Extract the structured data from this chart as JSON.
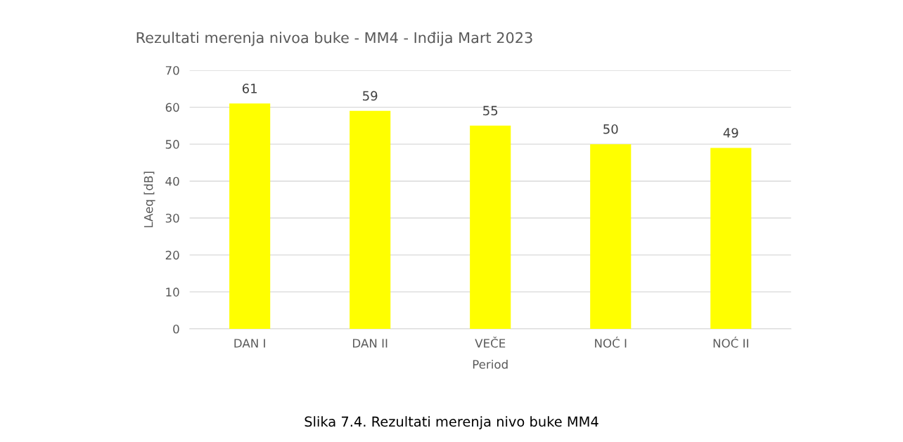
{
  "chart_data": {
    "type": "bar",
    "title": "Rezultati merenja nivoa buke - MM4 - Inđija Mart 2023",
    "xlabel": "Period",
    "ylabel": "LAeq [dB]",
    "categories": [
      "DAN I",
      "DAN II",
      "VEČE",
      "NOĆ I",
      "NOĆ II"
    ],
    "values": [
      61,
      59,
      55,
      50,
      49
    ],
    "color": "#ffff00",
    "ylim": [
      0,
      70
    ],
    "yticks": [
      0,
      10,
      20,
      30,
      40,
      50,
      60,
      70
    ],
    "grid": "y",
    "data_labels": true,
    "annotations": [
      "Slika 7.4. Rezultati merenja nivo buke MM4"
    ]
  }
}
